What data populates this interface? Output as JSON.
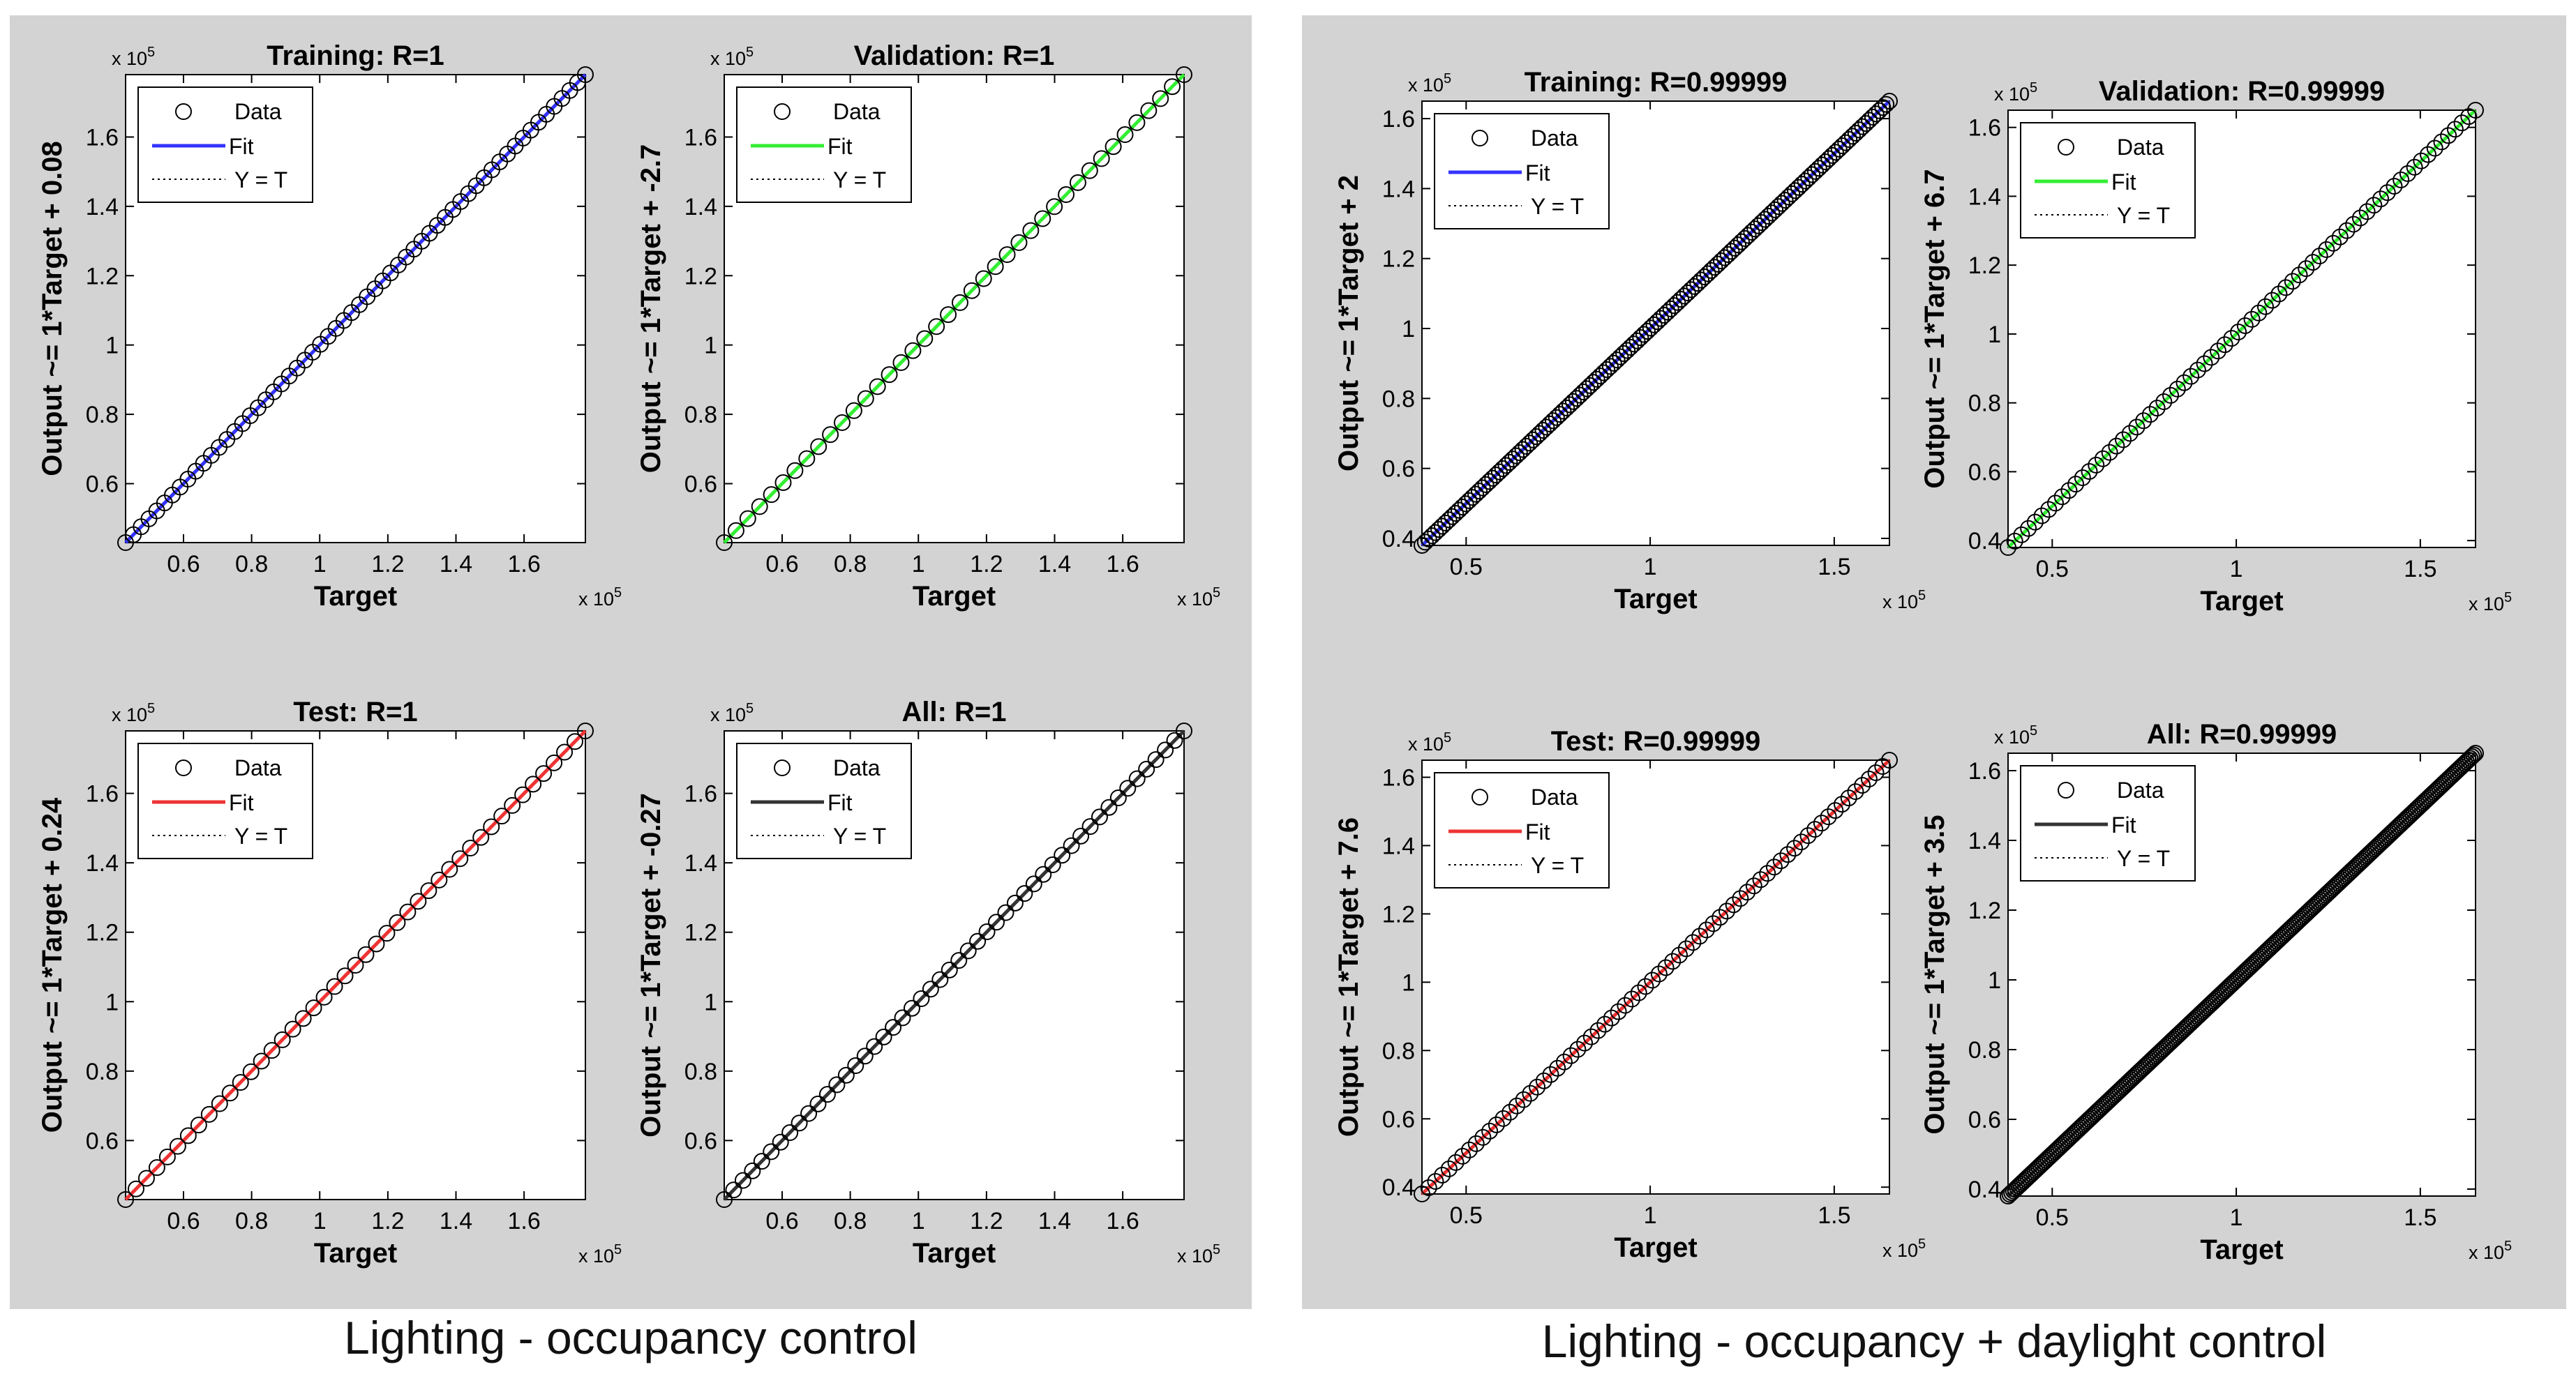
{
  "figures": [
    {
      "caption": "Lighting - occupancy control"
    },
    {
      "caption": "Lighting - occupancy + daylight control"
    }
  ],
  "chart_data": [
    {
      "type": "scatter",
      "title": "Training: R=1",
      "xlabel": "Target",
      "ylabel": "Output ~= 1*Target + 0.08",
      "xlim": [
        0.43,
        1.78
      ],
      "ylim": [
        0.43,
        1.78
      ],
      "xticks": [
        0.6,
        0.8,
        1,
        1.2,
        1.4,
        1.6
      ],
      "yticks": [
        0.6,
        0.8,
        1,
        1.2,
        1.4,
        1.6
      ],
      "xtick_labels": [
        "0.6",
        "0.8",
        "1",
        "1.2",
        "1.4",
        "1.6"
      ],
      "ytick_labels": [
        "0.6",
        "0.8",
        "1",
        "1.2",
        "1.4",
        "1.6"
      ],
      "multiplier": "x 10",
      "exponent": "5",
      "fit_color": "#3333ff",
      "legend": [
        "Data",
        "Fit",
        "Y = T"
      ],
      "slope": 1,
      "intercept": 0.08,
      "n": 60,
      "x_range": [
        0.43,
        1.78
      ]
    },
    {
      "type": "scatter",
      "title": "Validation: R=1",
      "xlabel": "Target",
      "ylabel": "Output ~= 1*Target + -2.7",
      "xlim": [
        0.43,
        1.78
      ],
      "ylim": [
        0.43,
        1.78
      ],
      "xticks": [
        0.6,
        0.8,
        1,
        1.2,
        1.4,
        1.6
      ],
      "yticks": [
        0.6,
        0.8,
        1,
        1.2,
        1.4,
        1.6
      ],
      "xtick_labels": [
        "0.6",
        "0.8",
        "1",
        "1.2",
        "1.4",
        "1.6"
      ],
      "ytick_labels": [
        "0.6",
        "0.8",
        "1",
        "1.2",
        "1.4",
        "1.6"
      ],
      "multiplier": "x 10",
      "exponent": "5",
      "fit_color": "#33ee33",
      "legend": [
        "Data",
        "Fit",
        "Y = T"
      ],
      "slope": 1,
      "intercept": -2.7,
      "n": 40,
      "x_range": [
        0.43,
        1.78
      ]
    },
    {
      "type": "scatter",
      "title": "Test: R=1",
      "xlabel": "Target",
      "ylabel": "Output ~= 1*Target + 0.24",
      "xlim": [
        0.43,
        1.78
      ],
      "ylim": [
        0.43,
        1.78
      ],
      "xticks": [
        0.6,
        0.8,
        1,
        1.2,
        1.4,
        1.6
      ],
      "yticks": [
        0.6,
        0.8,
        1,
        1.2,
        1.4,
        1.6
      ],
      "xtick_labels": [
        "0.6",
        "0.8",
        "1",
        "1.2",
        "1.4",
        "1.6"
      ],
      "ytick_labels": [
        "0.6",
        "0.8",
        "1",
        "1.2",
        "1.4",
        "1.6"
      ],
      "multiplier": "x 10",
      "exponent": "5",
      "fit_color": "#ee3333",
      "legend": [
        "Data",
        "Fit",
        "Y = T"
      ],
      "slope": 1,
      "intercept": 0.24,
      "n": 45,
      "x_range": [
        0.43,
        1.78
      ]
    },
    {
      "type": "scatter",
      "title": "All: R=1",
      "xlabel": "Target",
      "ylabel": "Output ~= 1*Target + -0.27",
      "xlim": [
        0.43,
        1.78
      ],
      "ylim": [
        0.43,
        1.78
      ],
      "xticks": [
        0.6,
        0.8,
        1,
        1.2,
        1.4,
        1.6
      ],
      "yticks": [
        0.6,
        0.8,
        1,
        1.2,
        1.4,
        1.6
      ],
      "xtick_labels": [
        "0.6",
        "0.8",
        "1",
        "1.2",
        "1.4",
        "1.6"
      ],
      "ytick_labels": [
        "0.6",
        "0.8",
        "1",
        "1.2",
        "1.4",
        "1.6"
      ],
      "multiplier": "x 10",
      "exponent": "5",
      "fit_color": "#333333",
      "legend": [
        "Data",
        "Fit",
        "Y = T"
      ],
      "slope": 1,
      "intercept": -0.27,
      "n": 50,
      "x_range": [
        0.43,
        1.78
      ]
    },
    {
      "type": "scatter",
      "title": "Training: R=0.99999",
      "xlabel": "Target",
      "ylabel": "Output ~= 1*Target + 2",
      "xlim": [
        0.38,
        1.65
      ],
      "ylim": [
        0.38,
        1.65
      ],
      "xticks": [
        0.5,
        1,
        1.5
      ],
      "yticks": [
        0.4,
        0.6,
        0.8,
        1,
        1.2,
        1.4,
        1.6
      ],
      "xtick_labels": [
        "0.5",
        "1",
        "1.5"
      ],
      "ytick_labels": [
        "0.4",
        "0.6",
        "0.8",
        "1",
        "1.2",
        "1.4",
        "1.6"
      ],
      "multiplier": "x 10",
      "exponent": "5",
      "fit_color": "#3333ff",
      "legend": [
        "Data",
        "Fit",
        "Y = T"
      ],
      "slope": 1,
      "intercept": 2,
      "n": 140,
      "x_range": [
        0.38,
        1.65
      ]
    },
    {
      "type": "scatter",
      "title": "Validation: R=0.99999",
      "xlabel": "Target",
      "ylabel": "Output ~= 1*Target + 6.7",
      "xlim": [
        0.38,
        1.65
      ],
      "ylim": [
        0.38,
        1.65
      ],
      "xticks": [
        0.5,
        1,
        1.5
      ],
      "yticks": [
        0.4,
        0.6,
        0.8,
        1,
        1.2,
        1.4,
        1.6
      ],
      "xtick_labels": [
        "0.5",
        "1",
        "1.5"
      ],
      "ytick_labels": [
        "0.4",
        "0.6",
        "0.8",
        "1",
        "1.2",
        "1.4",
        "1.6"
      ],
      "multiplier": "x 10",
      "exponent": "5",
      "fit_color": "#33ee33",
      "legend": [
        "Data",
        "Fit",
        "Y = T"
      ],
      "slope": 1,
      "intercept": 6.7,
      "n": 70,
      "x_range": [
        0.38,
        1.65
      ]
    },
    {
      "type": "scatter",
      "title": "Test: R=0.99999",
      "xlabel": "Target",
      "ylabel": "Output ~= 1*Target + 7.6",
      "xlim": [
        0.38,
        1.65
      ],
      "ylim": [
        0.38,
        1.65
      ],
      "xticks": [
        0.5,
        1,
        1.5
      ],
      "yticks": [
        0.4,
        0.6,
        0.8,
        1,
        1.2,
        1.4,
        1.6
      ],
      "xtick_labels": [
        "0.5",
        "1",
        "1.5"
      ],
      "ytick_labels": [
        "0.4",
        "0.6",
        "0.8",
        "1",
        "1.2",
        "1.4",
        "1.6"
      ],
      "multiplier": "x 10",
      "exponent": "5",
      "fit_color": "#ee3333",
      "legend": [
        "Data",
        "Fit",
        "Y = T"
      ],
      "slope": 1,
      "intercept": 7.6,
      "n": 70,
      "x_range": [
        0.38,
        1.65
      ]
    },
    {
      "type": "scatter",
      "title": "All: R=0.99999",
      "xlabel": "Target",
      "ylabel": "Output ~= 1*Target + 3.5",
      "xlim": [
        0.38,
        1.65
      ],
      "ylim": [
        0.38,
        1.65
      ],
      "xticks": [
        0.5,
        1,
        1.5
      ],
      "yticks": [
        0.4,
        0.6,
        0.8,
        1,
        1.2,
        1.4,
        1.6
      ],
      "xtick_labels": [
        "0.5",
        "1",
        "1.5"
      ],
      "ytick_labels": [
        "0.4",
        "0.6",
        "0.8",
        "1",
        "1.2",
        "1.4",
        "1.6"
      ],
      "multiplier": "x 10",
      "exponent": "5",
      "fit_color": "#333333",
      "legend": [
        "Data",
        "Fit",
        "Y = T"
      ],
      "slope": 1,
      "intercept": 3.5,
      "n": 260,
      "x_range": [
        0.38,
        1.65
      ]
    }
  ]
}
